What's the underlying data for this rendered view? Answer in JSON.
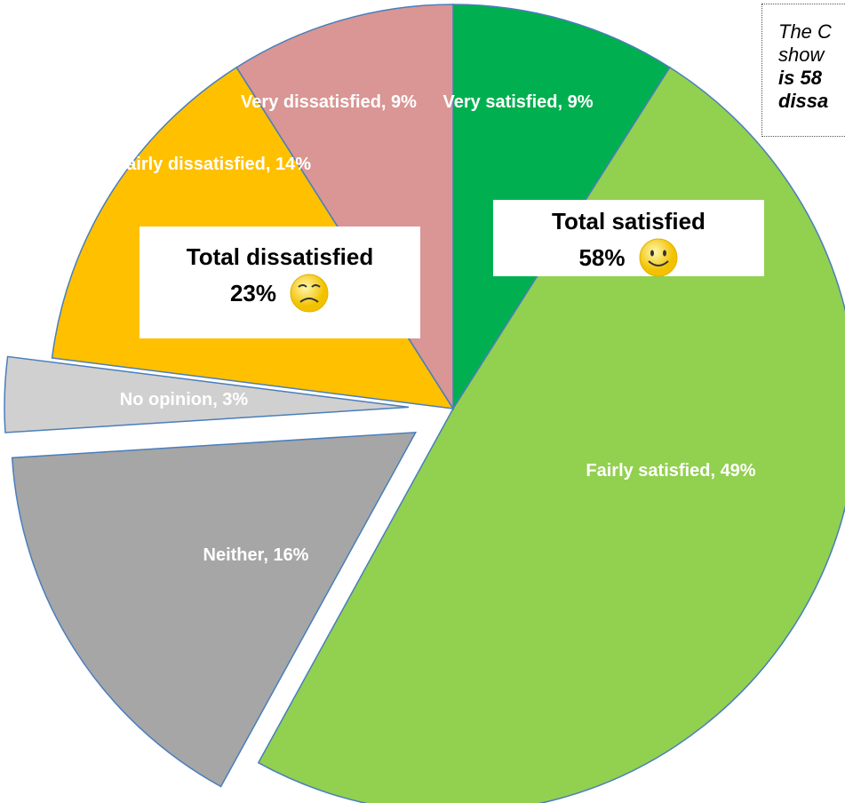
{
  "chart_data": {
    "type": "pie",
    "values": [
      9,
      49,
      16,
      3,
      14,
      9
    ],
    "value_labels": [
      "Very satisfied, 9%",
      "Fairly satisfied, 49%",
      "Neither, 16%",
      "No opinion, 3%",
      "Fairly dissatisfied, 14%",
      "Very dissatisfied, 9%"
    ],
    "colors": [
      "#00b050",
      "#92d050",
      "#a6a6a6",
      "#d0d0d0",
      "#ffc000",
      "#d99694"
    ],
    "exploded": [
      false,
      false,
      true,
      true,
      false,
      false
    ],
    "annotations": [
      {
        "text": "Total satisfied",
        "value_label": "58%"
      },
      {
        "text": "Total dissatisfied",
        "value_label": "23%"
      }
    ],
    "note_lines": [
      "The C",
      "show",
      "is 58",
      "dissa"
    ]
  }
}
